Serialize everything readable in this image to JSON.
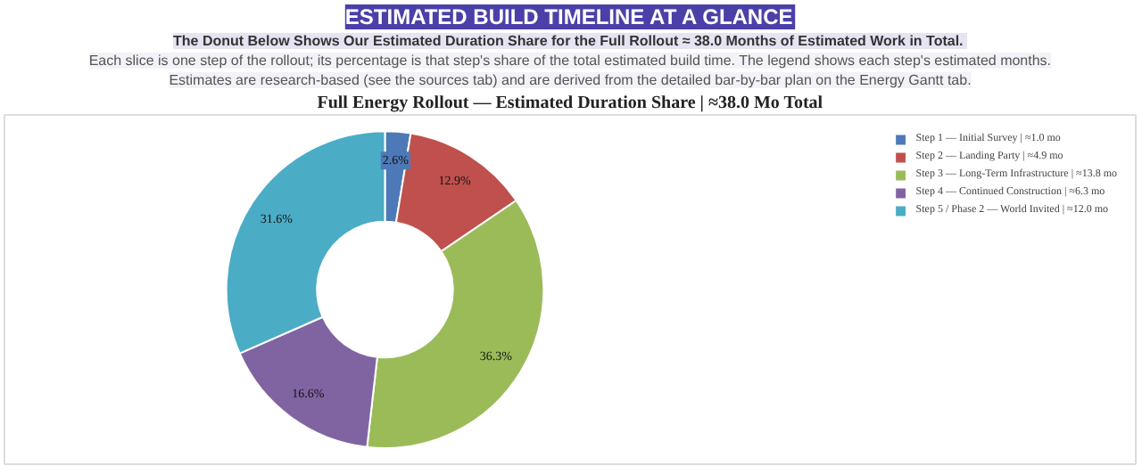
{
  "chart_data": {
    "type": "donut",
    "title": "Full Energy Rollout — Estimated Duration Share | ≈38.0 Mo Total",
    "subtitle": "ESTIMATED BUILD TIMELINE AT A GLANCE",
    "annotations": [
      "The Donut Below Shows Our Estimated Duration Share for the Full Rollout  ≈ 38.0 Months of Estimated Work in Total.",
      "Each slice is one step of the rollout; its percentage is that step's share of the total estimated build time. The legend shows each step's estimated months.",
      "Estimates are research-based (see the sources tab) and are derived from the detailed bar-by-bar plan on the Energy Gantt tab."
    ],
    "categories": [
      "Step 1 — Initial Survey | ≈1.0 mo",
      "Step 2 — Landing Party | ≈4.9 mo",
      "Step 3 — Long-Term Infrastructure | ≈13.8 mo",
      "Step 4 — Continued Construction | ≈6.3 mo",
      "Step 5 / Phase 2 — World Invited | ≈12.0 mo"
    ],
    "values": [
      2.6,
      12.9,
      36.3,
      16.6,
      31.6
    ],
    "colors": [
      "#4e79b8",
      "#c0504d",
      "#9bbb59",
      "#8064a2",
      "#4bacc6"
    ],
    "value_labels": [
      "2.6%",
      "12.9%",
      "36.3%",
      "16.6%",
      "31.6%"
    ],
    "legend": "right"
  }
}
